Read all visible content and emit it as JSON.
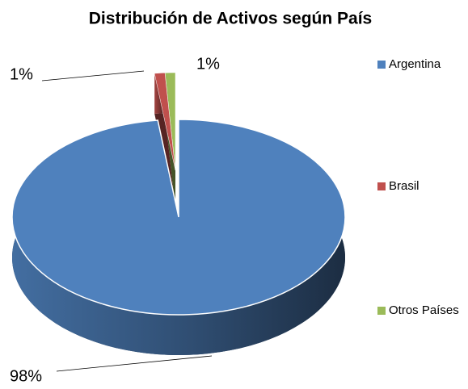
{
  "chart_data": {
    "type": "pie",
    "title": "Distribución de Activos según País",
    "categories": [
      "Argentina",
      "Brasil",
      "Otros Países"
    ],
    "values": [
      98,
      1,
      1
    ],
    "value_labels": [
      "98%",
      "1%",
      "1%"
    ],
    "colors": [
      "#4f81bd",
      "#c0504d",
      "#9bbb59"
    ],
    "legend": "right"
  }
}
